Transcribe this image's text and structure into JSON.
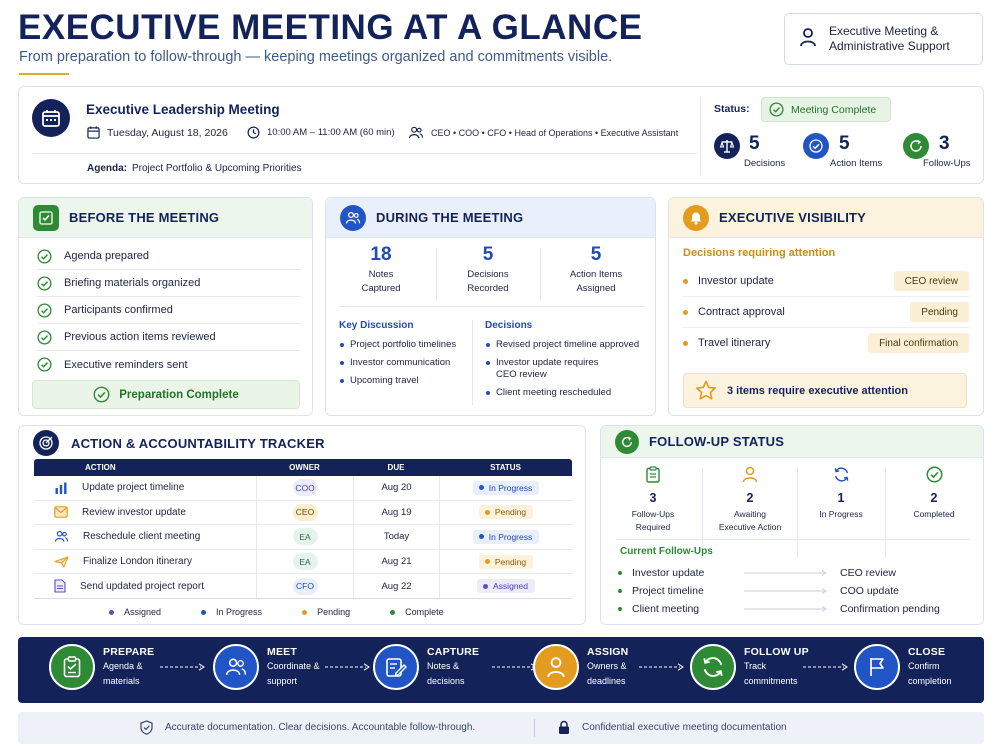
{
  "header": {
    "title": "EXECUTIVE MEETING AT A GLANCE",
    "subtitle": "From preparation to follow-through — keeping meetings organized and commitments visible.",
    "support_line1": "Executive Meeting &",
    "support_line2": "Administrative Support"
  },
  "meeting": {
    "name": "Executive Leadership Meeting",
    "date": "Tuesday, August 18, 2026",
    "time": "10:00 AM – 11:00 AM (60 min)",
    "attendees": "CEO • COO • CFO • Head of Operations • Executive Assistant",
    "agenda_label": "Agenda:",
    "agenda_value": "Project Portfolio & Upcoming Priorities",
    "status_label": "Status:",
    "status_value": "Meeting Complete",
    "stats": [
      {
        "value": "5",
        "label": "Decisions"
      },
      {
        "value": "5",
        "label": "Action Items"
      },
      {
        "value": "3",
        "label": "Follow-Ups"
      }
    ]
  },
  "before": {
    "title": "BEFORE THE MEETING",
    "items": [
      "Agenda prepared",
      "Briefing materials organized",
      "Participants confirmed",
      "Previous action items reviewed",
      "Executive reminders sent"
    ],
    "complete_label": "Preparation Complete"
  },
  "during": {
    "title": "DURING THE MEETING",
    "stats": [
      {
        "value": "18",
        "line1": "Notes",
        "line2": "Captured"
      },
      {
        "value": "5",
        "line1": "Decisions",
        "line2": "Recorded"
      },
      {
        "value": "5",
        "line1": "Action Items",
        "line2": "Assigned"
      }
    ],
    "key_title": "Key Discussion",
    "key_items": [
      "Project portfolio timelines",
      "Investor communication",
      "Upcoming travel"
    ],
    "decisions_title": "Decisions",
    "decision_items": [
      "Revised project timeline approved",
      "Investor update requires CEO review",
      "Client meeting rescheduled"
    ]
  },
  "visibility": {
    "title": "EXECUTIVE VISIBILITY",
    "subtitle": "Decisions requiring attention",
    "items": [
      {
        "label": "Investor update",
        "status": "CEO review"
      },
      {
        "label": "Contract approval",
        "status": "Pending"
      },
      {
        "label": "Travel itinerary",
        "status": "Final confirmation"
      }
    ],
    "attention_note": "3 items require executive attention"
  },
  "tracker": {
    "title": "ACTION & ACCOUNTABILITY TRACKER",
    "columns": [
      "ACTION",
      "OWNER",
      "DUE",
      "STATUS"
    ],
    "rows": [
      {
        "action": "Update project timeline",
        "icon": "bar-chart-icon",
        "owner": "COO",
        "due": "Aug 20",
        "status": "In Progress"
      },
      {
        "action": "Review investor update",
        "icon": "mail-icon",
        "owner": "CEO",
        "due": "Aug 19",
        "status": "Pending"
      },
      {
        "action": "Reschedule client meeting",
        "icon": "people-icon",
        "owner": "EA",
        "due": "Today",
        "status": "In Progress"
      },
      {
        "action": "Finalize London itinerary",
        "icon": "plane-icon",
        "owner": "EA",
        "due": "Aug 21",
        "status": "Pending"
      },
      {
        "action": "Send updated project report",
        "icon": "document-icon",
        "owner": "CFO",
        "due": "Aug 22",
        "status": "Assigned"
      }
    ],
    "legend": [
      "Assigned",
      "In Progress",
      "Pending",
      "Complete"
    ],
    "colors": {
      "assigned": "#5b4fc4",
      "in_progress": "#2154c4",
      "pending": "#e39b20",
      "complete": "#2e8a34"
    }
  },
  "followup": {
    "title": "FOLLOW-UP STATUS",
    "stats": [
      {
        "value": "3",
        "line1": "Follow-Ups",
        "line2": "Required"
      },
      {
        "value": "2",
        "line1": "Awaiting",
        "line2": "Executive Action"
      },
      {
        "value": "1",
        "line1": "In Progress",
        "line2": ""
      },
      {
        "value": "2",
        "line1": "Completed",
        "line2": ""
      }
    ],
    "current_title": "Current Follow-Ups",
    "items": [
      {
        "label": "Investor update",
        "result": "CEO review"
      },
      {
        "label": "Project timeline",
        "result": "COO update"
      },
      {
        "label": "Client meeting",
        "result": "Confirmation pending"
      }
    ]
  },
  "process": {
    "steps": [
      {
        "title": "PREPARE",
        "line1": "Agenda &",
        "line2": "materials"
      },
      {
        "title": "MEET",
        "line1": "Coordinate &",
        "line2": "support"
      },
      {
        "title": "CAPTURE",
        "line1": "Notes &",
        "line2": "decisions"
      },
      {
        "title": "ASSIGN",
        "line1": "Owners &",
        "line2": "deadlines"
      },
      {
        "title": "FOLLOW UP",
        "line1": "Track",
        "line2": "commitments"
      },
      {
        "title": "CLOSE",
        "line1": "Confirm",
        "line2": "completion"
      }
    ]
  },
  "footer": {
    "left": "Accurate documentation. Clear decisions. Accountable follow-through.",
    "right": "Confidential executive meeting documentation"
  }
}
